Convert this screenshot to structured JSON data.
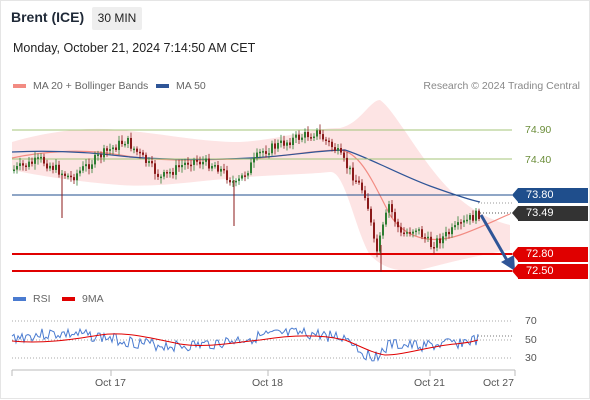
{
  "header": {
    "title": "Brent (ICE)",
    "interval": "30 MIN"
  },
  "timestamp": "Monday, October 21, 2024 7:14:50 AM CET",
  "legend": {
    "items": [
      {
        "label": "MA 20 + Bollinger Bands",
        "color": "#f28b82"
      },
      {
        "label": "MA 50",
        "color": "#2f5597"
      }
    ],
    "credit": "Research © 2024 Trading Central"
  },
  "price_levels": [
    {
      "value": "74.90",
      "style": "green-label"
    },
    {
      "value": "74.40",
      "style": "green-label"
    },
    {
      "value": "73.80",
      "style": "blue-tag",
      "color": "#1f4e8c"
    },
    {
      "value": "73.49",
      "style": "dark-tag",
      "color": "#333333"
    },
    {
      "value": "72.80",
      "style": "red-tag",
      "color": "#e00000"
    },
    {
      "value": "72.50",
      "style": "red-tag",
      "color": "#e00000"
    }
  ],
  "rsi": {
    "legend": [
      {
        "label": "RSI",
        "color": "#4a7bd0"
      },
      {
        "label": "9MA",
        "color": "#e00000"
      }
    ],
    "levels": [
      "70",
      "50",
      "30"
    ]
  },
  "x_axis": [
    "Oct 17",
    "Oct 18",
    "Oct 21",
    "Oct 27"
  ],
  "colors": {
    "up": "#2e7d32",
    "down": "#8b1a1a",
    "band": "#fde0e0",
    "ma20": "#f28b82",
    "ma50": "#2f5597"
  }
}
